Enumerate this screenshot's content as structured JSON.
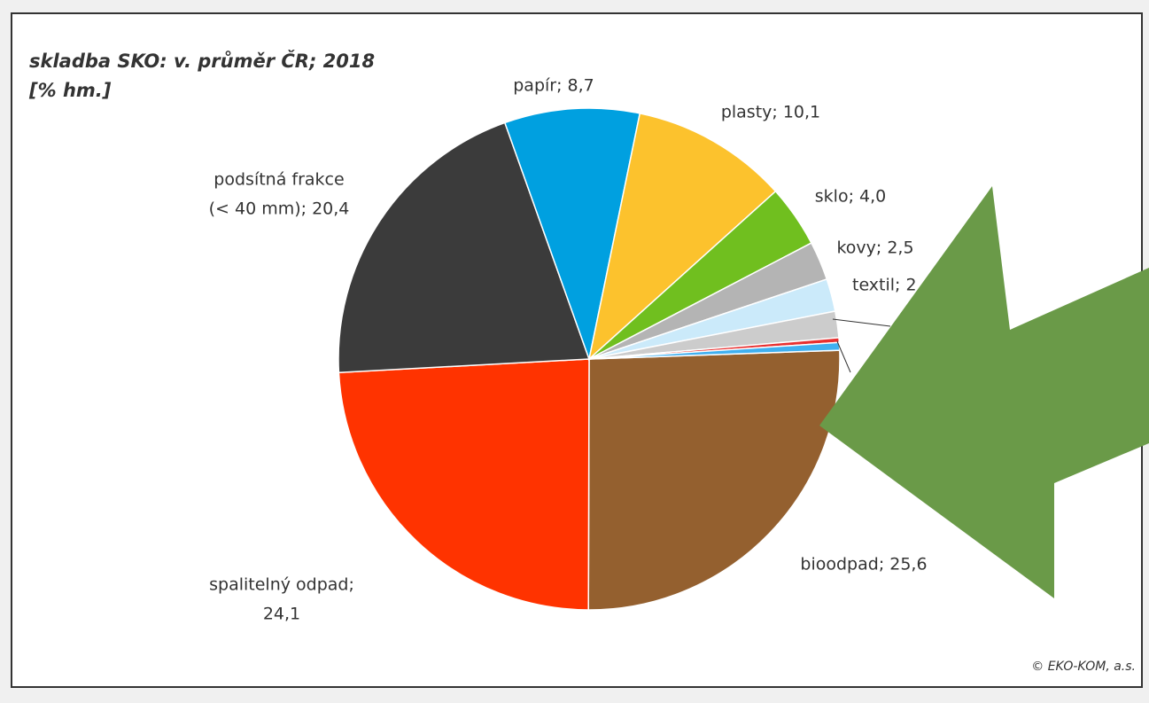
{
  "chart_data": {
    "type": "pie",
    "title": [
      "skladba SKO: v. průměr ČR; 2018",
      "[% hm.]"
    ],
    "labels": [
      [
        "bioodpad; 25,6"
      ],
      [
        "spalitelný odpad;",
        "24,1"
      ],
      [
        "podsítná frakce",
        "(< 40 mm); 20,4"
      ],
      [
        "papír; 8,7"
      ],
      [
        "plasty; 10,1"
      ],
      [
        "sklo; 4,0"
      ],
      [
        "kovy; 2,5"
      ],
      [
        "textil; 2"
      ],
      null,
      null,
      null
    ],
    "values": [
      25.6,
      24.1,
      20.4,
      8.7,
      10.1,
      4.0,
      2.5,
      2.1,
      1.7,
      0.3,
      0.5
    ],
    "colors": [
      "#94602f",
      "#ff3300",
      "#3b3b3b",
      "#00a0e0",
      "#fcc22d",
      "#70bf1f",
      "#b4b4b4",
      "#cbeafa",
      "#cccccc",
      "#e83030",
      "#40b0f0"
    ],
    "credit": "© EKO-KOM, a.s."
  }
}
